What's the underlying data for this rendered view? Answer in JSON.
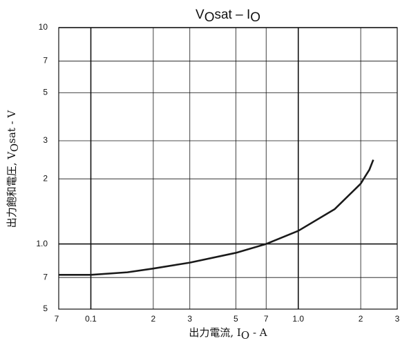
{
  "chart_data": {
    "type": "line",
    "title": [
      "V",
      "O",
      "sat – I",
      "O"
    ],
    "x_label": [
      "出力電流, I",
      "O",
      " - A"
    ],
    "y_label": [
      "出力飽和電圧, V",
      "O",
      "sat - V"
    ],
    "xscale": "log",
    "yscale": "log",
    "grid": true,
    "xlim": [
      0.07,
      3
    ],
    "ylim": [
      0.5,
      10
    ],
    "xticks": [
      {
        "value": 0.07,
        "label": "7"
      },
      0.1,
      {
        "value": 0.2,
        "label": "2"
      },
      {
        "value": 0.3,
        "label": "3"
      },
      {
        "value": 0.5,
        "label": "5"
      },
      {
        "value": 0.7,
        "label": "7"
      },
      {
        "value": 1,
        "label": "1.0"
      },
      2,
      3
    ],
    "yticks": [
      {
        "value": 0.5,
        "label": "5"
      },
      {
        "value": 0.7,
        "label": "7"
      },
      {
        "value": 1,
        "label": "1.0"
      },
      2,
      3,
      5,
      7,
      10
    ],
    "x": [
      0.07,
      0.1,
      0.15,
      0.2,
      0.3,
      0.5,
      0.7,
      1.0,
      1.5,
      2.0,
      2.1,
      2.2,
      2.3
    ],
    "series": [
      {
        "color": "#1a1a1a",
        "values": [
          0.72,
          0.72,
          0.74,
          0.77,
          0.82,
          0.91,
          1.0,
          1.15,
          1.45,
          1.9,
          2.05,
          2.2,
          2.45
        ]
      }
    ]
  }
}
